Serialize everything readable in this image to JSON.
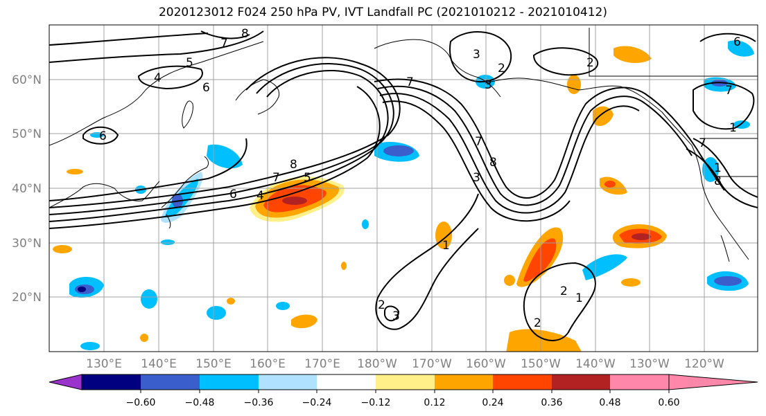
{
  "title": "2020123012 F024 250 hPa PV, IVT Landfall PC (2021010212 - 2021010412)",
  "map": {
    "lon_labels": [
      "130°E",
      "140°E",
      "150°E",
      "160°E",
      "170°E",
      "180°W",
      "170°W",
      "160°W",
      "150°W",
      "140°W",
      "130°W",
      "120°W"
    ],
    "lat_labels": [
      "60°N",
      "50°N",
      "40°N",
      "30°N",
      "20°N"
    ],
    "contour_labels": [
      "8",
      "7",
      "5",
      "6",
      "4",
      "6",
      "7",
      "8",
      "7",
      "6",
      "4",
      "5",
      "7",
      "3",
      "8",
      "3",
      "2",
      "3",
      "2",
      "6",
      "1",
      "8",
      "7",
      "7",
      "1",
      "2",
      "3",
      "2",
      "1",
      "2",
      "1"
    ]
  },
  "colorbar": {
    "tick_labels": [
      "−0.60",
      "−0.48",
      "−0.36",
      "−0.24",
      "−0.12",
      "0.12",
      "0.24",
      "0.36",
      "0.48",
      "0.60"
    ],
    "colors": [
      "#9933cc",
      "#000080",
      "#3a5fcd",
      "#00bfff",
      "#b0e2ff",
      "#ffffff",
      "#fff08a",
      "#ffa500",
      "#ff4500",
      "#b22222",
      "#ff88aa"
    ]
  }
}
